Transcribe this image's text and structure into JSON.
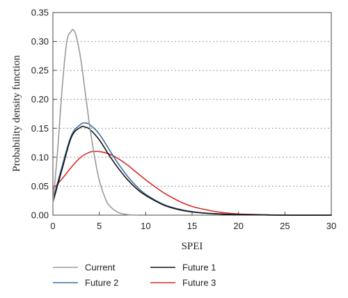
{
  "chart_data": {
    "type": "line",
    "title": "",
    "xlabel": "SPEI",
    "ylabel": "Probability density function",
    "xlim": [
      0,
      30
    ],
    "ylim": [
      0,
      0.35
    ],
    "xticks": [
      "0",
      "5",
      "10",
      "15",
      "20",
      "25",
      "30"
    ],
    "yticks": [
      "0.00",
      "0.05",
      "0.10",
      "0.15",
      "0.20",
      "0.25",
      "0.30",
      "0.35"
    ],
    "grid": "horizontal dotted",
    "legend_position": "bottom",
    "series": [
      {
        "name": "Current",
        "color": "#999999",
        "x": [
          0,
          0.5,
          1,
          1.5,
          2,
          2.2,
          2.5,
          3,
          3.5,
          4,
          4.5,
          5,
          5.5,
          6,
          7,
          8,
          9
        ],
        "y": [
          0.02,
          0.11,
          0.22,
          0.3,
          0.318,
          0.32,
          0.31,
          0.27,
          0.21,
          0.15,
          0.1,
          0.06,
          0.035,
          0.018,
          0.005,
          0.001,
          0.0
        ]
      },
      {
        "name": "Future 1",
        "color": "#111111",
        "x": [
          0,
          1,
          2,
          3,
          3.5,
          4,
          5,
          6,
          7,
          8,
          9,
          10,
          12,
          14,
          16,
          18,
          20,
          25,
          30
        ],
        "y": [
          0.022,
          0.08,
          0.135,
          0.152,
          0.152,
          0.148,
          0.13,
          0.105,
          0.082,
          0.062,
          0.046,
          0.034,
          0.017,
          0.008,
          0.004,
          0.002,
          0.001,
          0.0,
          0.0
        ]
      },
      {
        "name": "Future 2",
        "color": "#3d6b9c",
        "x": [
          0,
          1,
          2,
          3,
          3.5,
          4,
          5,
          6,
          7,
          8,
          9,
          10,
          12,
          14,
          16,
          18,
          20,
          25,
          30
        ],
        "y": [
          0.026,
          0.085,
          0.138,
          0.157,
          0.159,
          0.156,
          0.14,
          0.115,
          0.09,
          0.068,
          0.05,
          0.036,
          0.018,
          0.009,
          0.004,
          0.002,
          0.001,
          0.0,
          0.0
        ]
      },
      {
        "name": "Future 3",
        "color": "#d42a2a",
        "x": [
          0,
          1,
          2,
          3,
          4,
          4.5,
          5,
          6,
          7,
          8,
          9,
          10,
          11,
          12,
          13,
          14,
          15,
          16,
          18,
          20,
          22,
          25,
          30
        ],
        "y": [
          0.045,
          0.063,
          0.083,
          0.1,
          0.109,
          0.11,
          0.11,
          0.106,
          0.098,
          0.087,
          0.074,
          0.061,
          0.049,
          0.038,
          0.029,
          0.021,
          0.015,
          0.011,
          0.005,
          0.002,
          0.001,
          0.0,
          0.0
        ]
      }
    ],
    "legend": [
      {
        "series": "Current",
        "label": "Current"
      },
      {
        "series": "Future 1",
        "label": "Future 1"
      },
      {
        "series": "Future 2",
        "label": "Future 2"
      },
      {
        "series": "Future 3",
        "label": "Future 3"
      }
    ]
  }
}
